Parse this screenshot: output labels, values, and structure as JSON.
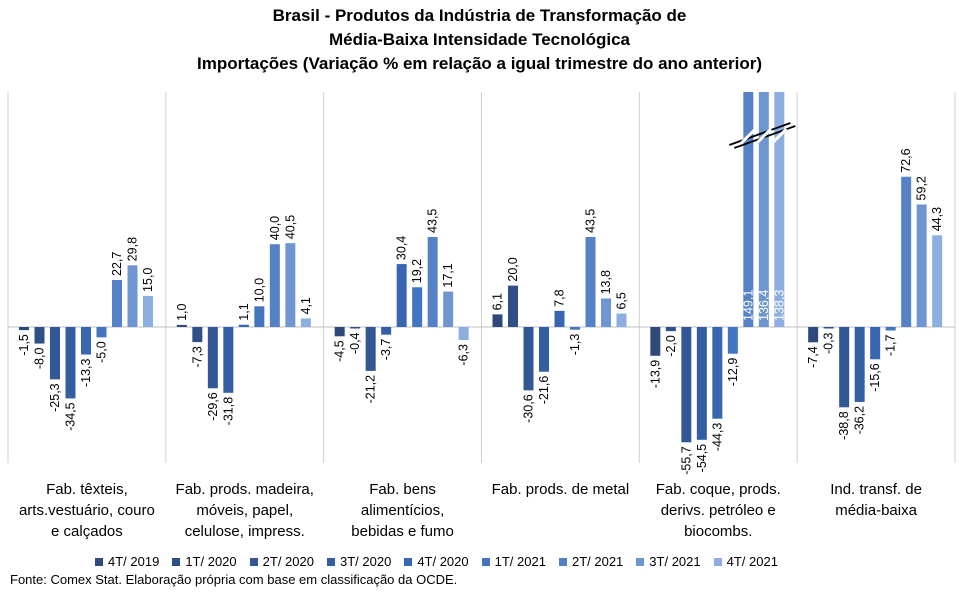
{
  "title_lines": [
    "Brasil - Produtos da Indústria de Transformação de",
    "Média-Baixa Intensidade Tecnológica",
    "Importações (Variação % em relação a igual trimestre do ano anterior)"
  ],
  "source": "Fonte: Comex Stat. Elaboração própria com base em classificação da OCDE.",
  "colors": {
    "series": [
      "#2e4a7a",
      "#2f5087",
      "#315794",
      "#335ea3",
      "#3966b0",
      "#4475c0",
      "#5582c6",
      "#6f96d0",
      "#8daee0"
    ]
  },
  "chart_data": {
    "type": "bar",
    "title": "Brasil - Produtos da Indústria de Transformação de Média-Baixa Intensidade Tecnológica Importações (Variação % em relação a igual trimestre do ano anterior)",
    "categories": [
      [
        "Fab. têxteis,",
        "arts.vestuário, couro",
        "e calçados"
      ],
      [
        "Fab. prods. madeira,",
        "móveis, papel,",
        "celulose, impress."
      ],
      [
        "Fab. bens",
        "alimentícios,",
        "bebidas e fumo"
      ],
      [
        "Fab. prods. de metal"
      ],
      [
        "Fab. coque, prods.",
        "derivs. petróleo e",
        "biocombs."
      ],
      [
        "Ind. transf. de",
        "média-baixa"
      ]
    ],
    "series": [
      {
        "name": "4T/ 2019",
        "values": [
          -1.5,
          1.0,
          -4.5,
          6.1,
          -13.9,
          -7.4
        ],
        "labels": [
          "-1,5",
          "1,0",
          "-4,5",
          "6,1",
          "-13,9",
          "-7,4"
        ]
      },
      {
        "name": "1T/ 2020",
        "values": [
          -8.0,
          -7.3,
          -0.4,
          20.0,
          -2.0,
          -0.3
        ],
        "labels": [
          "-8,0",
          "-7,3",
          "-0,4",
          "20,0",
          "-2,0",
          "-0,3"
        ]
      },
      {
        "name": "2T/ 2020",
        "values": [
          -25.3,
          -29.6,
          -21.2,
          -30.6,
          -55.7,
          -38.8
        ],
        "labels": [
          "-25,3",
          "-29,6",
          "-21,2",
          "-30,6",
          "-55,7",
          "-38,8"
        ]
      },
      {
        "name": "3T/ 2020",
        "values": [
          -34.5,
          -31.8,
          -3.7,
          -21.6,
          -54.5,
          -36.2
        ],
        "labels": [
          "-34,5",
          "-31,8",
          "-3,7",
          "-21,6",
          "-54,5",
          "-36,2"
        ]
      },
      {
        "name": "4T/ 2020",
        "values": [
          -13.3,
          1.1,
          30.4,
          7.8,
          -44.3,
          -15.6
        ],
        "labels": [
          "-13,3",
          "1,1",
          "30,4",
          "7,8",
          "-44,3",
          "-15,6"
        ]
      },
      {
        "name": "1T/ 2021",
        "values": [
          -5.0,
          10.0,
          19.2,
          -1.3,
          -12.9,
          -1.7
        ],
        "labels": [
          "-5,0",
          "10,0",
          "19,2",
          "-1,3",
          "-12,9",
          "-1,7"
        ]
      },
      {
        "name": "2T/ 2021",
        "values": [
          22.7,
          40.0,
          43.5,
          43.5,
          149.1,
          72.6
        ],
        "labels": [
          "22,7",
          "40,0",
          "43,5",
          "43,5",
          "149,1",
          "72,6"
        ]
      },
      {
        "name": "3T/ 2021",
        "values": [
          29.8,
          40.5,
          17.1,
          13.8,
          136.4,
          59.2
        ],
        "labels": [
          "29,8",
          "40,5",
          "17,1",
          "13,8",
          "136,4",
          "59,2"
        ]
      },
      {
        "name": "4T/ 2021",
        "values": [
          15.0,
          4.1,
          -6.3,
          6.5,
          138.3,
          44.3
        ],
        "labels": [
          "15,0",
          "4,1",
          "-6,3",
          "6,5",
          "138,3",
          "44,3"
        ]
      }
    ],
    "axis_break": true,
    "grid": false,
    "legend_position": "bottom"
  }
}
